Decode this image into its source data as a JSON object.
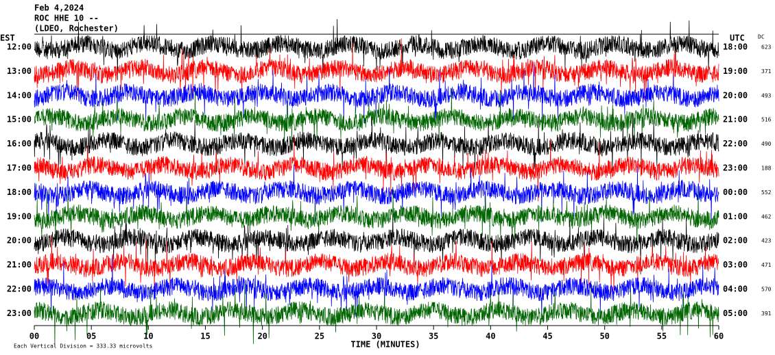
{
  "chart_data": {
    "type": "helicorder",
    "title_lines": [
      "Feb 4,2024",
      "ROC HHE 10 --",
      "(LDEO, Rochester)"
    ],
    "left_axis_label": "EST",
    "right_axis_label": "UTC",
    "dc_label": "DC",
    "rows": [
      {
        "est": "12:00",
        "utc": "18:00",
        "dc": 623,
        "color": "#000000"
      },
      {
        "est": "13:00",
        "utc": "19:00",
        "dc": 371,
        "color": "#ff0000"
      },
      {
        "est": "14:00",
        "utc": "20:00",
        "dc": 493,
        "color": "#0000ff"
      },
      {
        "est": "15:00",
        "utc": "21:00",
        "dc": 516,
        "color": "#006400"
      },
      {
        "est": "16:00",
        "utc": "22:00",
        "dc": 490,
        "color": "#000000"
      },
      {
        "est": "17:00",
        "utc": "23:00",
        "dc": 188,
        "color": "#ff0000"
      },
      {
        "est": "18:00",
        "utc": "00:00",
        "dc": 552,
        "color": "#0000ff"
      },
      {
        "est": "19:00",
        "utc": "01:00",
        "dc": 462,
        "color": "#006400"
      },
      {
        "est": "20:00",
        "utc": "02:00",
        "dc": 423,
        "color": "#000000"
      },
      {
        "est": "21:00",
        "utc": "03:00",
        "dc": 471,
        "color": "#ff0000"
      },
      {
        "est": "22:00",
        "utc": "04:00",
        "dc": 570,
        "color": "#0000ff"
      },
      {
        "est": "23:00",
        "utc": "05:00",
        "dc": 391,
        "color": "#006400"
      }
    ],
    "x_label": "TIME (MINUTES)",
    "xlim": [
      0,
      60
    ],
    "xticks": [
      {
        "value": 0,
        "label": "00"
      },
      {
        "value": 5,
        "label": "05"
      },
      10,
      15,
      20,
      25,
      30,
      35,
      40,
      45,
      50,
      55,
      60
    ],
    "footer": "Each Vertical Division = 333.33 microvolts"
  }
}
